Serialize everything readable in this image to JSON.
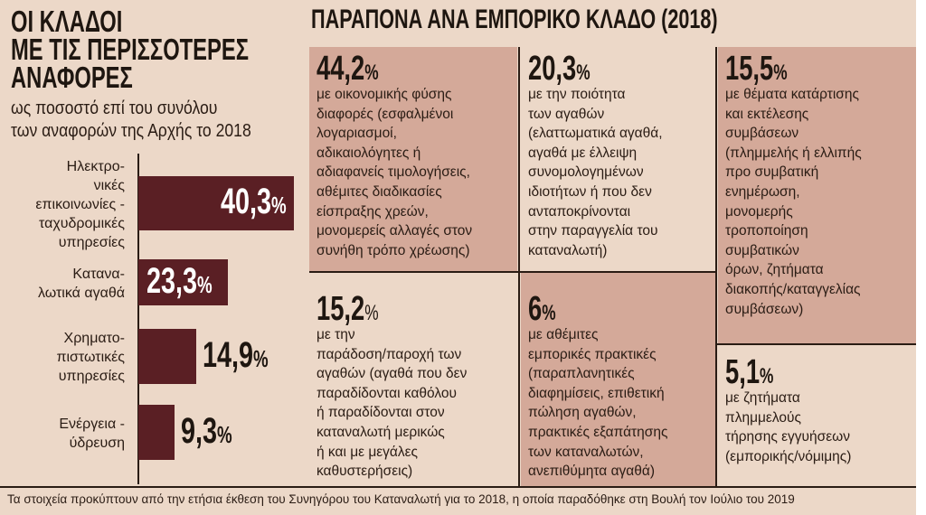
{
  "left_panel": {
    "title_lines": [
      "ΟΙ ΚΛΑΔΟΙ",
      "ΜΕ ΤΙΣ ΠΕΡΙΣΣΟΤΕΡΕΣ",
      "ΑΝΑΦΟΡΕΣ"
    ],
    "subtitle_lines": [
      "ως ποσοστό επί του συνόλου",
      "των αναφορών της Αρχής το 2018"
    ]
  },
  "chart_data": {
    "type": "bar",
    "orientation": "horizontal",
    "title": "ΟΙ ΚΛΑΔΟΙ ΜΕ ΤΙΣ ΠΕΡΙΣΣΟΤΕΡΕΣ ΑΝΑΦΟΡΕΣ",
    "subtitle": "ως ποσοστό επί του συνόλου των αναφορών της Αρχής το 2018",
    "unit": "%",
    "bar_color": "#5a1f24",
    "categories": [
      [
        "Ηλεκτρο-",
        "νικές",
        "επικοινωνίες -",
        "ταχυδρομικές",
        "υπηρεσίες"
      ],
      [
        "Κατανα-",
        "λωτικά αγαθά"
      ],
      [
        "Χρηματο-",
        "πιστωτικές",
        "υπηρεσίες"
      ],
      [
        "Ενέργεια -",
        "ύδρευση"
      ]
    ],
    "values": [
      40.3,
      23.3,
      14.9,
      9.3
    ],
    "value_labels": [
      "40,3",
      "23,3",
      "14,9",
      "9,3"
    ]
  },
  "right_panel": {
    "title": "ΠΑΡΑΠΟΝΑ ΑΝΑ ΕΜΠΟΡΙΚΟ ΚΛΑΔΟ (2018)",
    "highlight_color": "#d4a999",
    "boxes": [
      {
        "pct": "44,2",
        "unit": "%",
        "lines": [
          "με οικονομικής φύσης",
          "διαφορές (εσφαλμένοι",
          "λογαριασμοί,",
          "αδικαιολόγητες ή",
          "αδιαφανείς τιμολογήσεις,",
          "αθέμιτες διαδικασίες",
          "είσπραξης χρεών,",
          "μονομερείς αλλαγές στον",
          "συνήθη τρόπο χρέωσης)"
        ]
      },
      {
        "pct": "20,3",
        "unit": "%",
        "lines": [
          "με την ποιότητα",
          "των αγαθών",
          "(ελαττωματικά αγαθά,",
          "αγαθά με έλλειψη",
          "συνομολογημένων",
          "ιδιοτήτων ή που δεν",
          "ανταποκρίνονται",
          "στην παραγγελία του",
          "καταναλωτή)"
        ]
      },
      {
        "pct": "15,5",
        "unit": "%",
        "lines": [
          "με θέματα κατάρτισης",
          "και εκτέλεσης",
          "συμβάσεων",
          "(πλημμελής ή ελλιπής",
          "προ συμβατική",
          "ενημέρωση,",
          "μονομερής",
          "τροποποίηση",
          "συμβατικών",
          "όρων, ζητήματα",
          "διακοπής/καταγγελίας",
          "συμβάσεων)"
        ]
      },
      {
        "pct": "15,2",
        "unit": "%",
        "lines": [
          "με την",
          "παράδοση/παροχή των",
          "αγαθών (αγαθά που δεν",
          "παραδίδονται καθόλου",
          "ή παραδίδονται στον",
          "καταναλωτή μερικώς",
          "ή και με μεγάλες",
          "καθυστερήσεις)"
        ]
      },
      {
        "pct": "6",
        "unit": "%",
        "lines": [
          "με αθέμιτες",
          "εμπορικές πρακτικές",
          "(παραπλανητικές",
          "διαφημίσεις, επιθετική",
          "πώληση αγαθών,",
          "πρακτικές εξαπάτησης",
          "των καταναλωτών,",
          "ανεπιθύμητα αγαθά)"
        ]
      },
      {
        "pct": "5,1",
        "unit": "%",
        "lines": [
          "με ζητήματα",
          "πλημμελούς",
          "τήρησης εγγυήσεων",
          "(εμπορικής/νόμιμης)"
        ]
      }
    ]
  },
  "footer": "Τα στοιχεία προκύπτουν από την ετήσια έκθεση του Συνηγόρου του Καταναλωτή για το 2018, η οποία παραδόθηκε στη Βουλή τον Ιούλιο του 2019"
}
